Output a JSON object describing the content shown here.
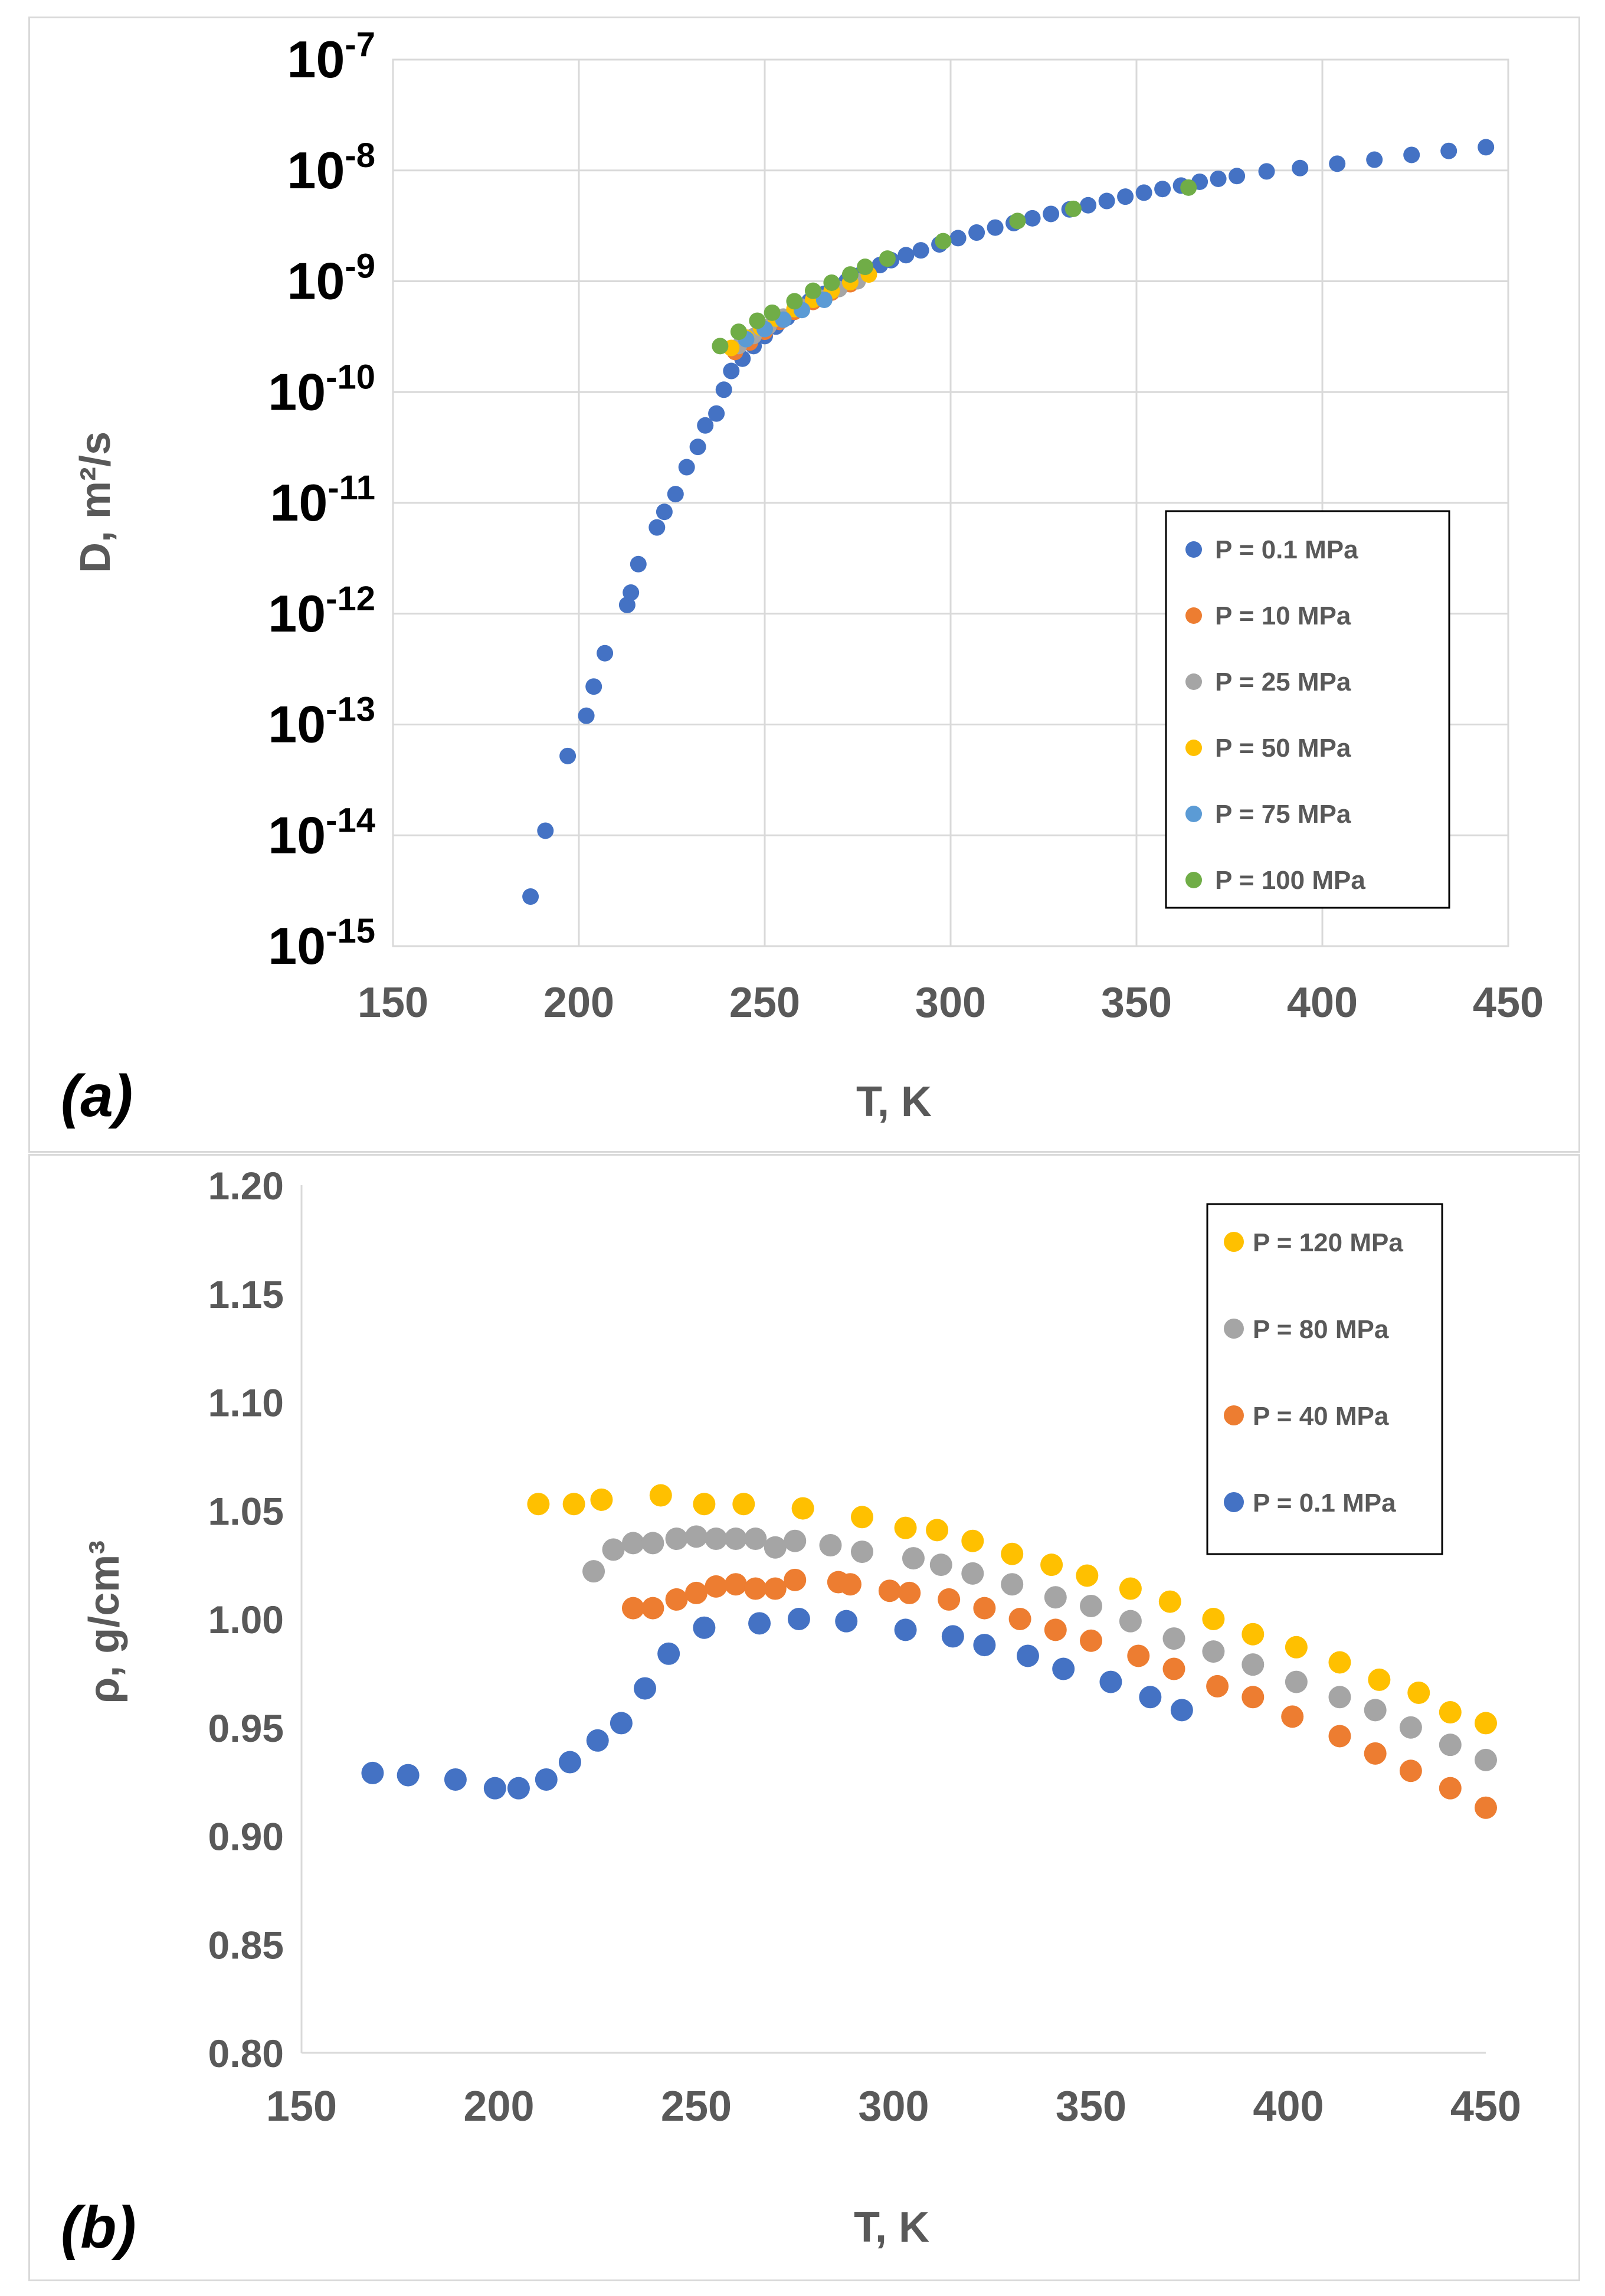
{
  "chart_data": [
    {
      "type": "scatter",
      "panel_label": "(a)",
      "xlabel": "T, K",
      "ylabel": "D, m²/s",
      "yscale": "log",
      "xlim": [
        150,
        450
      ],
      "ylim_exponent": [
        -15,
        -7
      ],
      "xticks": [
        "150",
        "200",
        "250",
        "300",
        "350",
        "400",
        "450"
      ],
      "yticks": [
        {
          "base": "10",
          "exp": "-15"
        },
        {
          "base": "10",
          "exp": "-14"
        },
        {
          "base": "10",
          "exp": "-13"
        },
        {
          "base": "10",
          "exp": "-12"
        },
        {
          "base": "10",
          "exp": "-11"
        },
        {
          "base": "10",
          "exp": "-10"
        },
        {
          "base": "10",
          "exp": "-9"
        },
        {
          "base": "10",
          "exp": "-8"
        },
        {
          "base": "10",
          "exp": "-7"
        }
      ],
      "grid": true,
      "legend_position": "right-middle",
      "series": [
        {
          "name": "P = 0.1 MPa",
          "color": "#4472C4",
          "x": [
            187,
            191,
            197,
            202,
            204,
            207,
            213,
            214,
            216,
            221,
            223,
            226,
            229,
            232,
            234,
            237,
            239,
            241,
            244,
            247,
            250,
            253,
            256,
            259,
            262,
            266,
            269,
            272,
            275,
            278,
            281,
            284,
            288,
            292,
            297,
            302,
            307,
            312,
            317,
            322,
            327,
            332,
            337,
            342,
            347,
            352,
            357,
            362,
            367,
            372,
            377,
            385,
            394,
            404,
            414,
            424,
            434,
            444
          ],
          "y": [
            2.8e-15,
            1.1e-14,
            5.2e-14,
            1.2e-13,
            2.2e-13,
            4.4e-13,
            1.2e-12,
            1.55e-12,
            2.8e-12,
            6e-12,
            8.3e-12,
            1.2e-11,
            2.1e-11,
            3.2e-11,
            5e-11,
            6.4e-11,
            1.05e-10,
            1.55e-10,
            2e-10,
            2.6e-10,
            3.2e-10,
            3.9e-10,
            4.7e-10,
            5.6e-10,
            6.6e-10,
            7.7e-10,
            8.8e-10,
            1e-09,
            1.12e-09,
            1.25e-09,
            1.4e-09,
            1.55e-09,
            1.72e-09,
            1.9e-09,
            2.15e-09,
            2.45e-09,
            2.75e-09,
            3.05e-09,
            3.35e-09,
            3.7e-09,
            4.05e-09,
            4.45e-09,
            4.85e-09,
            5.3e-09,
            5.8e-09,
            6.3e-09,
            6.8e-09,
            7.3e-09,
            7.9e-09,
            8.4e-09,
            8.9e-09,
            9.8e-09,
            1.05e-08,
            1.15e-08,
            1.25e-08,
            1.38e-08,
            1.5e-08,
            1.62e-08
          ]
        },
        {
          "name": "P = 10 MPa",
          "color": "#ED7D31",
          "x": [
            242,
            246,
            250,
            254,
            258,
            263,
            268,
            273
          ],
          "y": [
            2.3e-10,
            2.8e-10,
            3.5e-10,
            4.3e-10,
            5.3e-10,
            6.5e-10,
            7.9e-10,
            9.4e-10
          ]
        },
        {
          "name": "P = 25 MPa",
          "color": "#A5A5A5",
          "x": [
            243,
            247,
            251,
            255,
            260,
            265,
            270,
            275
          ],
          "y": [
            2.6e-10,
            3.2e-10,
            3.9e-10,
            4.8e-10,
            5.9e-10,
            7.1e-10,
            8.5e-10,
            1e-09
          ]
        },
        {
          "name": "P = 50 MPa",
          "color": "#FFC000",
          "x": [
            241,
            245,
            249,
            253,
            258,
            263,
            268,
            273,
            278
          ],
          "y": [
            2.5e-10,
            3.1e-10,
            3.8e-10,
            4.6e-10,
            5.6e-10,
            6.8e-10,
            8.2e-10,
            9.8e-10,
            1.15e-09
          ]
        },
        {
          "name": "P = 75 MPa",
          "color": "#5B9BD5",
          "x": [
            245,
            250,
            255,
            260,
            266
          ],
          "y": [
            3e-10,
            3.7e-10,
            4.5e-10,
            5.5e-10,
            6.8e-10
          ]
        },
        {
          "name": "P = 100 MPa",
          "color": "#70AD47",
          "x": [
            238,
            243,
            248,
            252,
            258,
            263,
            268,
            273,
            277,
            283,
            298,
            318,
            333,
            364
          ],
          "y": [
            2.6e-10,
            3.5e-10,
            4.4e-10,
            5.2e-10,
            6.6e-10,
            8.2e-10,
            9.7e-10,
            1.15e-09,
            1.35e-09,
            1.6e-09,
            2.3e-09,
            3.5e-09,
            4.5e-09,
            7e-09
          ]
        }
      ]
    },
    {
      "type": "scatter",
      "panel_label": "(b)",
      "xlabel": "T, K",
      "ylabel": "ρ, g/cm³",
      "xlim": [
        150,
        450
      ],
      "ylim": [
        0.8,
        1.2
      ],
      "xticks": [
        "150",
        "200",
        "250",
        "300",
        "350",
        "400",
        "450"
      ],
      "yticks": [
        "0.80",
        "0.85",
        "0.90",
        "0.95",
        "1.00",
        "1.05",
        "1.10",
        "1.15",
        "1.20"
      ],
      "grid": false,
      "legend_position": "top-right",
      "series": [
        {
          "name": "P = 120 MPa",
          "color": "#FFC000",
          "x": [
            210,
            219,
            226,
            241,
            252,
            262,
            277,
            292,
            303,
            311,
            320,
            330,
            340,
            349,
            360,
            370,
            381,
            391,
            402,
            413,
            423,
            433,
            441,
            450
          ],
          "y": [
            1.053,
            1.053,
            1.055,
            1.057,
            1.053,
            1.053,
            1.051,
            1.047,
            1.042,
            1.041,
            1.036,
            1.03,
            1.025,
            1.02,
            1.014,
            1.008,
            1.0,
            0.993,
            0.987,
            0.98,
            0.972,
            0.966,
            0.957,
            0.952
          ]
        },
        {
          "name": "P = 80 MPa",
          "color": "#A5A5A5",
          "x": [
            224,
            229,
            234,
            239,
            245,
            250,
            255,
            260,
            265,
            270,
            275,
            284,
            292,
            305,
            312,
            320,
            330,
            341,
            350,
            360,
            371,
            381,
            391,
            402,
            413,
            422,
            431,
            441,
            450
          ],
          "y": [
            1.022,
            1.032,
            1.035,
            1.035,
            1.037,
            1.038,
            1.037,
            1.037,
            1.037,
            1.033,
            1.036,
            1.034,
            1.031,
            1.028,
            1.025,
            1.021,
            1.016,
            1.01,
            1.006,
            0.999,
            0.991,
            0.985,
            0.979,
            0.971,
            0.964,
            0.958,
            0.95,
            0.942,
            0.935
          ]
        },
        {
          "name": "P = 40 MPa",
          "color": "#ED7D31",
          "x": [
            234,
            239,
            245,
            250,
            255,
            260,
            265,
            270,
            275,
            286,
            289,
            299,
            304,
            314,
            323,
            332,
            341,
            350,
            362,
            371,
            382,
            391,
            401,
            413,
            422,
            431,
            441,
            450
          ],
          "y": [
            1.005,
            1.005,
            1.009,
            1.012,
            1.015,
            1.016,
            1.014,
            1.014,
            1.018,
            1.017,
            1.016,
            1.013,
            1.012,
            1.009,
            1.005,
            1.0,
            0.995,
            0.99,
            0.983,
            0.977,
            0.969,
            0.964,
            0.955,
            0.946,
            0.938,
            0.93,
            0.922,
            0.913
          ]
        },
        {
          "name": "P = 0.1 MPa",
          "color": "#4472C4",
          "x": [
            168,
            177,
            189,
            199,
            205,
            212,
            218,
            225,
            231,
            237,
            243,
            252,
            266,
            276,
            288,
            303,
            315,
            323,
            334,
            343,
            355,
            365,
            373
          ],
          "y": [
            0.929,
            0.928,
            0.926,
            0.922,
            0.922,
            0.926,
            0.934,
            0.944,
            0.952,
            0.968,
            0.984,
            0.996,
            0.998,
            1.0,
            0.999,
            0.995,
            0.992,
            0.988,
            0.983,
            0.977,
            0.971,
            0.964,
            0.958
          ]
        }
      ]
    }
  ]
}
